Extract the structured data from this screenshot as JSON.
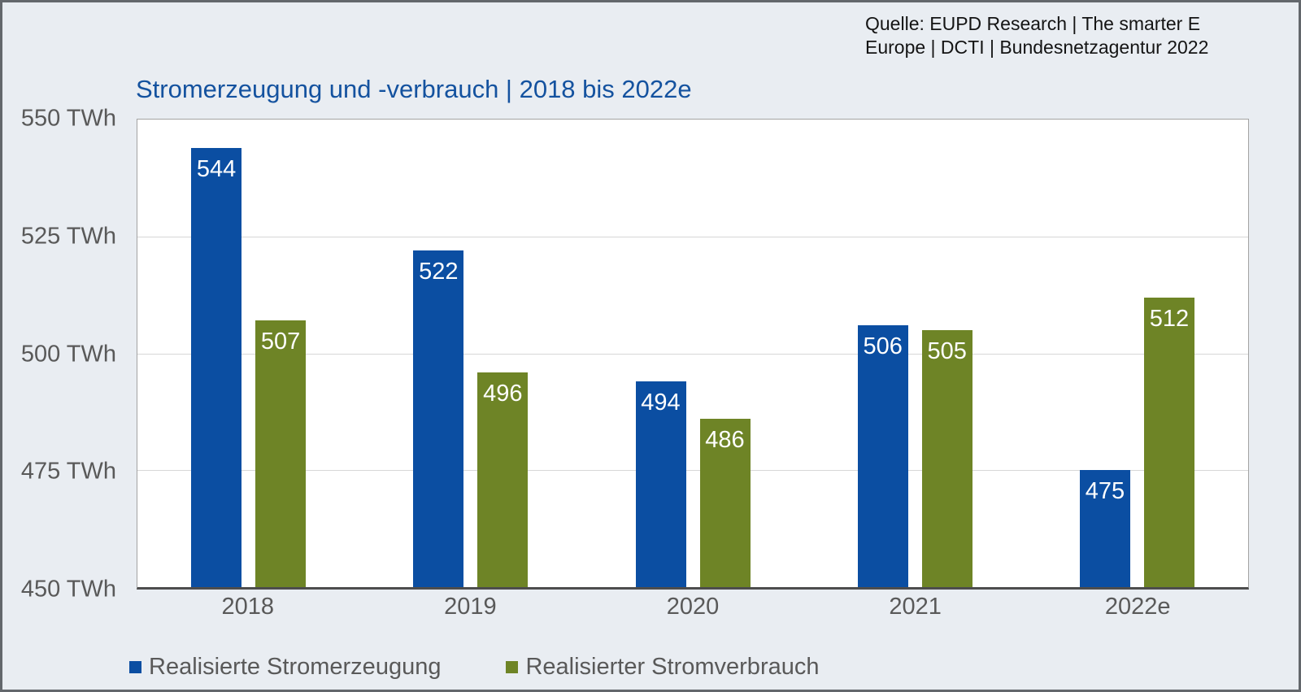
{
  "source": {
    "line1": "Quelle: EUPD Research | The smarter E",
    "line2": "Europe | DCTI | Bundesnetzagentur 2022"
  },
  "chart_data": {
    "type": "bar",
    "title": "Stromerzeugung und -verbrauch | 2018 bis 2022e",
    "categories": [
      "2018",
      "2019",
      "2020",
      "2021",
      "2022e"
    ],
    "series": [
      {
        "name": "Realisierte Stromerzeugung",
        "color": "#0b4ea2",
        "values": [
          544,
          522,
          494,
          506,
          475
        ]
      },
      {
        "name": "Realisierter Stromverbrauch",
        "color": "#6e8426",
        "values": [
          507,
          496,
          486,
          505,
          512
        ]
      }
    ],
    "ylim": [
      450,
      550
    ],
    "yticks": [
      550,
      525,
      500,
      475,
      450
    ],
    "ytick_suffix": " TWh",
    "grid": true,
    "legend_position": "bottom",
    "value_label_position": "inside-top",
    "colors": {
      "background": "#e9edf2",
      "title_text": "#14529f",
      "axis_text": "#595959",
      "source_text": "#141414",
      "value_label_text": "#ffffff",
      "gridline": "#d7d7d7",
      "plot_border": "#a3a3a3",
      "axis_line": "#4d4d4d"
    }
  }
}
